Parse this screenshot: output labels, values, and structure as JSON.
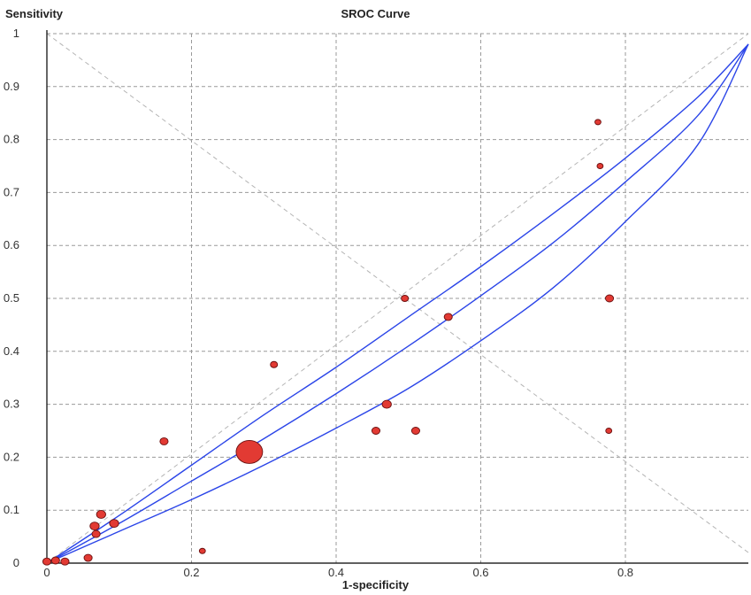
{
  "chart_data": {
    "type": "scatter",
    "title": "SROC Curve",
    "ylabel": "Sensitivity",
    "xlabel": "1-specificity",
    "xlim": [
      0,
      0.97
    ],
    "ylim": [
      0,
      1
    ],
    "xticks": [
      "0",
      "0.2",
      "0.4",
      "0.6",
      "0.8"
    ],
    "yticks": [
      "0",
      "0.1",
      "0.2",
      "0.3",
      "0.4",
      "0.5",
      "0.6",
      "0.7",
      "0.8",
      "0.9",
      "1"
    ],
    "grid": true,
    "reference_lines": [
      {
        "name": "diagonal",
        "points": [
          [
            0,
            0
          ],
          [
            0.97,
            1
          ]
        ]
      },
      {
        "name": "anti-diagonal",
        "points": [
          [
            0,
            1
          ],
          [
            0.97,
            0.02
          ]
        ]
      }
    ],
    "curves": [
      {
        "name": "upper-ci",
        "points": [
          [
            0,
            0
          ],
          [
            0.1,
            0.09
          ],
          [
            0.2,
            0.185
          ],
          [
            0.3,
            0.28
          ],
          [
            0.4,
            0.37
          ],
          [
            0.5,
            0.465
          ],
          [
            0.6,
            0.56
          ],
          [
            0.7,
            0.66
          ],
          [
            0.8,
            0.765
          ],
          [
            0.9,
            0.88
          ],
          [
            0.97,
            0.98
          ]
        ]
      },
      {
        "name": "sroc",
        "points": [
          [
            0,
            0
          ],
          [
            0.1,
            0.075
          ],
          [
            0.2,
            0.155
          ],
          [
            0.3,
            0.235
          ],
          [
            0.4,
            0.32
          ],
          [
            0.5,
            0.41
          ],
          [
            0.6,
            0.505
          ],
          [
            0.7,
            0.605
          ],
          [
            0.8,
            0.72
          ],
          [
            0.9,
            0.845
          ],
          [
            0.97,
            0.98
          ]
        ]
      },
      {
        "name": "lower-ci",
        "points": [
          [
            0,
            0
          ],
          [
            0.1,
            0.06
          ],
          [
            0.2,
            0.12
          ],
          [
            0.3,
            0.185
          ],
          [
            0.4,
            0.255
          ],
          [
            0.5,
            0.33
          ],
          [
            0.6,
            0.42
          ],
          [
            0.7,
            0.52
          ],
          [
            0.8,
            0.645
          ],
          [
            0.9,
            0.79
          ],
          [
            0.97,
            0.98
          ]
        ]
      }
    ],
    "points": [
      {
        "x": 0.0,
        "y": 0.003,
        "r": 4
      },
      {
        "x": 0.012,
        "y": 0.005,
        "r": 4
      },
      {
        "x": 0.025,
        "y": 0.003,
        "r": 4
      },
      {
        "x": 0.057,
        "y": 0.01,
        "r": 4
      },
      {
        "x": 0.066,
        "y": 0.07,
        "r": 4.5
      },
      {
        "x": 0.068,
        "y": 0.055,
        "r": 4
      },
      {
        "x": 0.075,
        "y": 0.092,
        "r": 4.5
      },
      {
        "x": 0.093,
        "y": 0.075,
        "r": 4.5
      },
      {
        "x": 0.162,
        "y": 0.23,
        "r": 4
      },
      {
        "x": 0.215,
        "y": 0.023,
        "r": 3
      },
      {
        "x": 0.28,
        "y": 0.21,
        "r": 13
      },
      {
        "x": 0.314,
        "y": 0.375,
        "r": 3.5
      },
      {
        "x": 0.455,
        "y": 0.25,
        "r": 4
      },
      {
        "x": 0.47,
        "y": 0.3,
        "r": 4.5
      },
      {
        "x": 0.495,
        "y": 0.5,
        "r": 3.5
      },
      {
        "x": 0.51,
        "y": 0.25,
        "r": 4
      },
      {
        "x": 0.555,
        "y": 0.465,
        "r": 4
      },
      {
        "x": 0.762,
        "y": 0.833,
        "r": 3
      },
      {
        "x": 0.765,
        "y": 0.75,
        "r": 3
      },
      {
        "x": 0.777,
        "y": 0.25,
        "r": 3
      },
      {
        "x": 0.778,
        "y": 0.5,
        "r": 4
      }
    ],
    "colors": {
      "curves": "#2b45e8",
      "points_fill": "#e23a33",
      "points_stroke": "#6a1010",
      "grid": "#9a9a9a",
      "reference": "#b5b5b5"
    }
  }
}
